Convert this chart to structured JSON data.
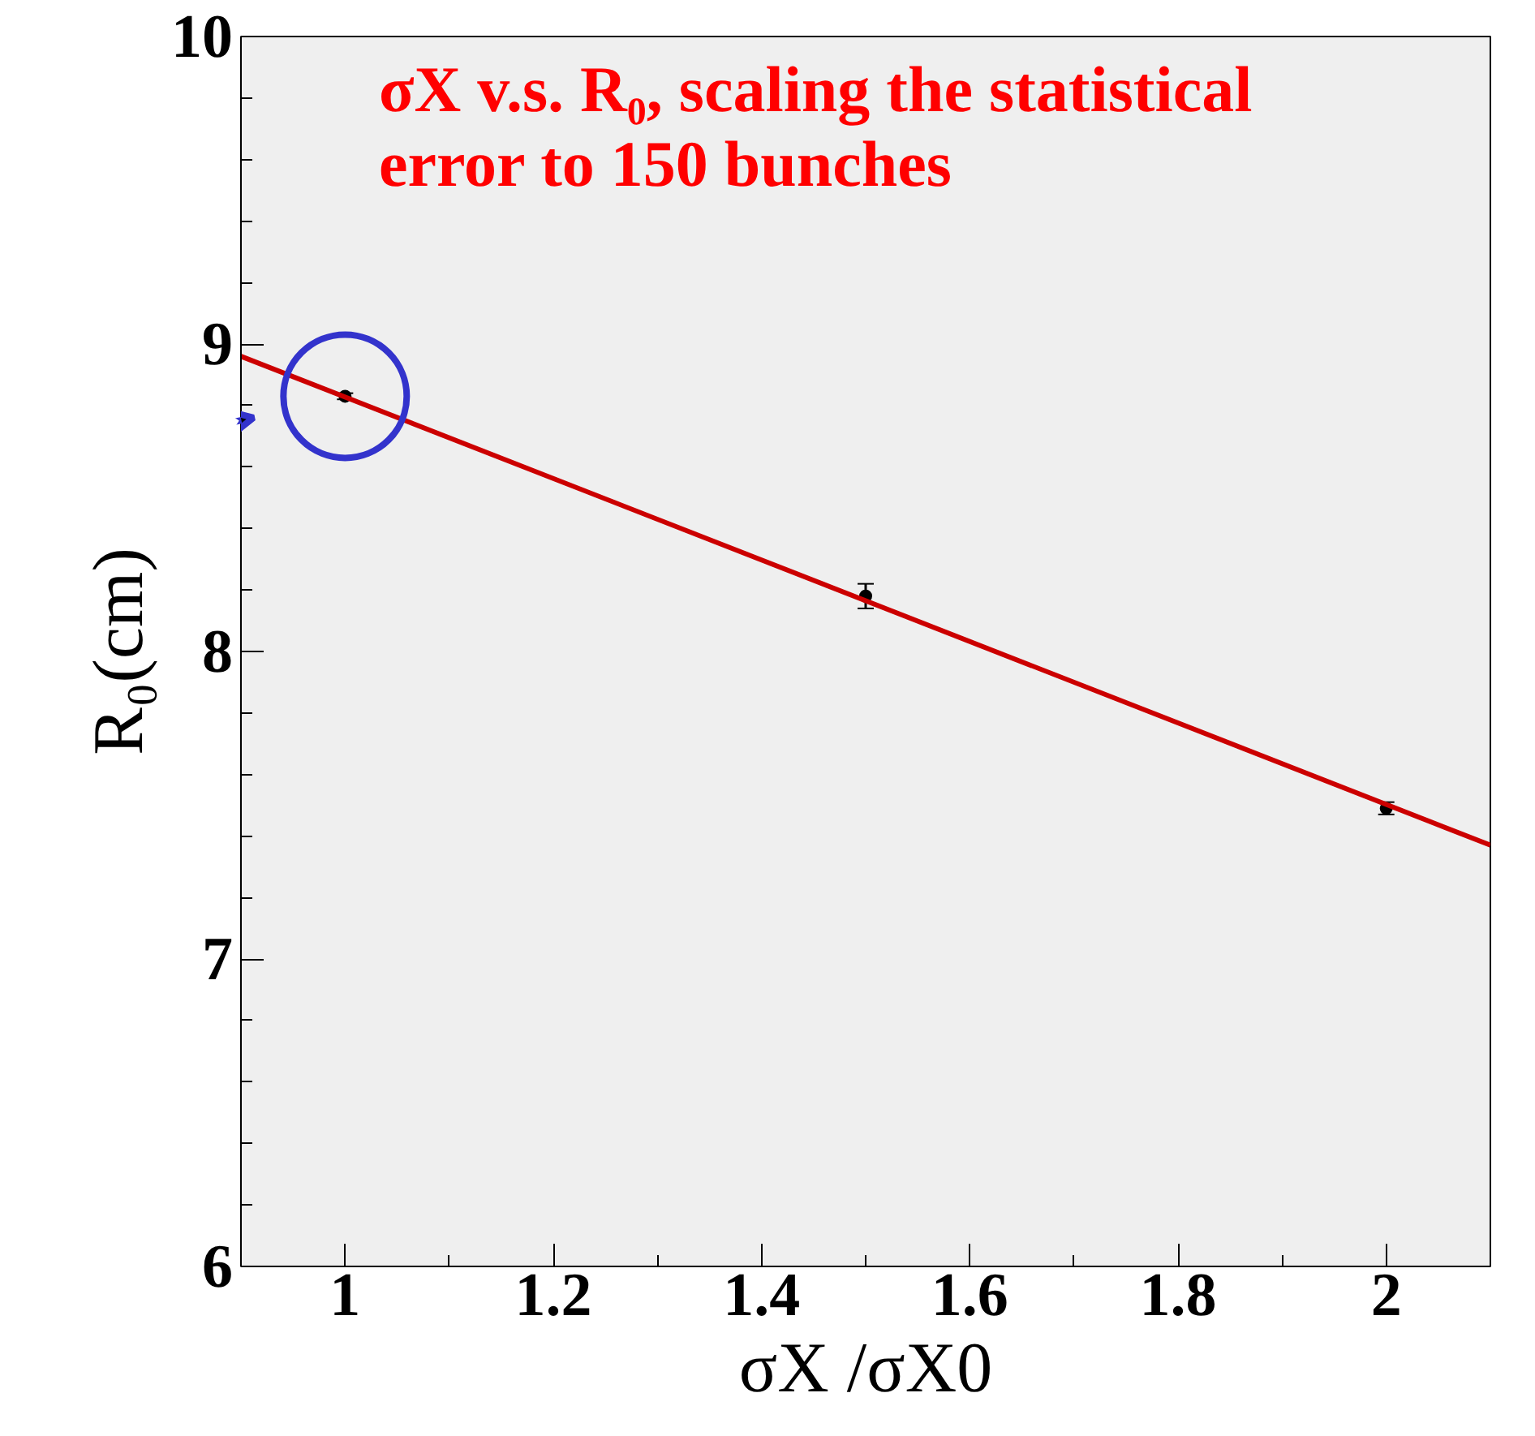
{
  "chart_data": {
    "type": "scatter",
    "xlabel": "σX /σX0",
    "ylabel": "R₀(cm)",
    "annotations": [
      "σX v.s. R₀, scaling the statistical",
      "error to 150 bunches"
    ],
    "xlim": [
      0.9,
      2.1
    ],
    "ylim": [
      6,
      10
    ],
    "xticks": [
      1,
      1.2,
      1.4,
      1.6,
      1.8,
      2
    ],
    "yticks": [
      6,
      7,
      8,
      9,
      10
    ],
    "grid": false,
    "series": [
      {
        "marker": "circle",
        "color": "#000000",
        "x": [
          1,
          1.5,
          2
        ],
        "values": [
          8.83,
          8.18,
          7.49
        ],
        "errors": [
          0.01,
          0.04,
          0.02
        ]
      },
      {
        "type": "line",
        "color": "#cc0000",
        "x": [
          0.9,
          2.1
        ],
        "values": [
          8.96,
          7.37
        ]
      }
    ]
  }
}
